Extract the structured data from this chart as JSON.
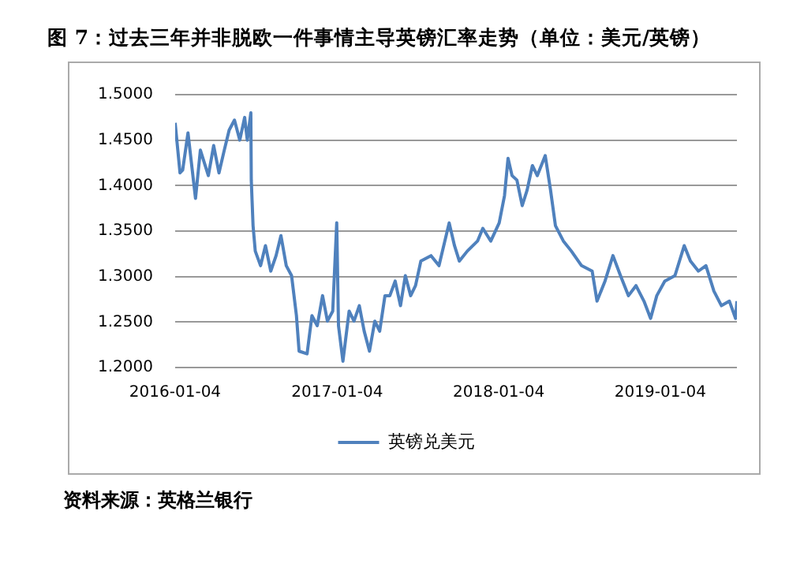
{
  "chart_data": {
    "type": "line",
    "title": "图 7：过去三年并非脱欧一件事情主导英镑汇率走势（单位：美元/英镑）",
    "annotations": [
      "资料来源：英格兰银行"
    ],
    "x": [
      "2016-01-04",
      "2016-01-15",
      "2016-01-21",
      "2016-02-02",
      "2016-02-19",
      "2016-03-01",
      "2016-03-19",
      "2016-03-31",
      "2016-04-12",
      "2016-04-24",
      "2016-05-05",
      "2016-05-17",
      "2016-05-29",
      "2016-06-09",
      "2016-06-15",
      "2016-06-23",
      "2016-06-24",
      "2016-06-28",
      "2016-07-03",
      "2016-07-15",
      "2016-07-26",
      "2016-08-07",
      "2016-08-19",
      "2016-08-30",
      "2016-09-11",
      "2016-09-23",
      "2016-10-04",
      "2016-10-10",
      "2016-10-28",
      "2016-11-08",
      "2016-11-20",
      "2016-12-02",
      "2016-12-13",
      "2016-12-25",
      "2017-01-03",
      "2017-01-07",
      "2017-01-17",
      "2017-01-31",
      "2017-02-11",
      "2017-02-23",
      "2017-03-06",
      "2017-03-18",
      "2017-03-30",
      "2017-04-10",
      "2017-04-22",
      "2017-05-03",
      "2017-05-15",
      "2017-05-27",
      "2017-06-07",
      "2017-06-19",
      "2017-06-30",
      "2017-07-12",
      "2017-08-04",
      "2017-08-22",
      "2017-09-14",
      "2017-09-26",
      "2017-10-07",
      "2017-10-25",
      "2017-11-17",
      "2017-11-29",
      "2017-12-17",
      "2018-01-05",
      "2018-01-17",
      "2018-01-25",
      "2018-02-03",
      "2018-02-14",
      "2018-02-26",
      "2018-03-09",
      "2018-03-21",
      "2018-04-01",
      "2018-04-19",
      "2018-05-01",
      "2018-05-12",
      "2018-05-30",
      "2018-06-17",
      "2018-07-10",
      "2018-08-03",
      "2018-08-14",
      "2018-09-01",
      "2018-09-19",
      "2018-10-06",
      "2018-10-24",
      "2018-11-10",
      "2018-11-28",
      "2018-12-13",
      "2018-12-27",
      "2019-01-14",
      "2019-02-06",
      "2019-02-27",
      "2019-03-13",
      "2019-03-31",
      "2019-04-17",
      "2019-05-05",
      "2019-05-22",
      "2019-06-09",
      "2019-06-23",
      "2019-06-26"
    ],
    "series": [
      {
        "name": "英镑兑美元",
        "color": "#4f81bd",
        "values": [
          1.469,
          1.414,
          1.417,
          1.458,
          1.386,
          1.439,
          1.411,
          1.444,
          1.414,
          1.439,
          1.461,
          1.472,
          1.45,
          1.475,
          1.45,
          1.48,
          1.406,
          1.356,
          1.328,
          1.312,
          1.334,
          1.306,
          1.323,
          1.345,
          1.312,
          1.301,
          1.257,
          1.218,
          1.215,
          1.257,
          1.246,
          1.279,
          1.251,
          1.262,
          1.359,
          1.246,
          1.207,
          1.262,
          1.251,
          1.268,
          1.24,
          1.218,
          1.251,
          1.24,
          1.279,
          1.279,
          1.295,
          1.268,
          1.301,
          1.279,
          1.29,
          1.317,
          1.323,
          1.312,
          1.359,
          1.334,
          1.317,
          1.328,
          1.339,
          1.353,
          1.339,
          1.359,
          1.389,
          1.43,
          1.411,
          1.406,
          1.378,
          1.395,
          1.422,
          1.411,
          1.433,
          1.395,
          1.356,
          1.339,
          1.328,
          1.312,
          1.306,
          1.273,
          1.295,
          1.323,
          1.301,
          1.279,
          1.29,
          1.273,
          1.254,
          1.279,
          1.295,
          1.301,
          1.334,
          1.317,
          1.306,
          1.312,
          1.284,
          1.268,
          1.273,
          1.254,
          1.273
        ]
      }
    ],
    "xlim": [
      "2016-01-04",
      "2019-06-26"
    ],
    "xticks": [
      "2016-01-04",
      "2017-01-04",
      "2018-01-04",
      "2019-01-04"
    ],
    "ylim": [
      1.2,
      1.5
    ],
    "yticks": [
      {
        "value": 1.2,
        "label": "1.2000"
      },
      {
        "value": 1.25,
        "label": "1.2500"
      },
      {
        "value": 1.3,
        "label": "1.3000"
      },
      {
        "value": 1.35,
        "label": "1.3500"
      },
      {
        "value": 1.4,
        "label": "1.4000"
      },
      {
        "value": 1.45,
        "label": "1.4500"
      },
      {
        "value": 1.5,
        "label": "1.5000"
      }
    ],
    "grid": "y",
    "legend": "bottom",
    "marker": "none",
    "line_style": "solid"
  }
}
